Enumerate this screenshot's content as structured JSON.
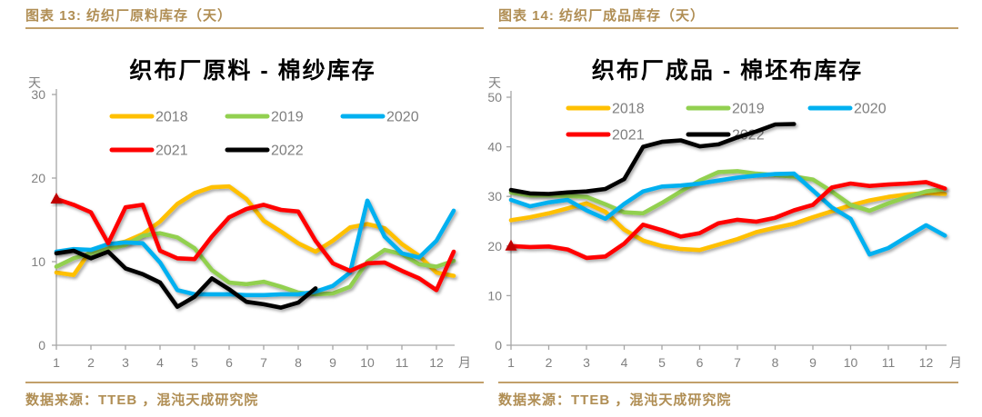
{
  "panels": [
    {
      "header": "图表 13: 纺织厂原料库存（天）",
      "footer": "数据来源：TTEB ，混沌天成研究院"
    },
    {
      "header": "图表 14: 纺织厂成品库存（天）",
      "footer": "数据来源：TTEB ，混沌天成研究院"
    }
  ],
  "colors": {
    "header_gold": "#B08E54",
    "rule_gold": "#C2A06A",
    "axis_gray": "#A6A6A6",
    "tick_label_gray": "#808080",
    "legend_text_gray": "#7F7F7F",
    "title_black": "#000000",
    "marker_red": "#C00000"
  },
  "chart_data": [
    {
      "type": "line",
      "title": "织布厂原料 - 棉纱库存",
      "y_axis_unit": "天",
      "x_axis_unit": "月",
      "ylim": [
        0,
        30
      ],
      "yticks": [
        0,
        10,
        20,
        30
      ],
      "xticks": [
        1,
        2,
        3,
        4,
        5,
        6,
        7,
        8,
        9,
        10,
        11,
        12
      ],
      "grid": false,
      "legend_position": "top-center",
      "legend_rows": [
        [
          "2018",
          "2019",
          "2020"
        ],
        [
          "2021",
          "2022"
        ]
      ],
      "x": [
        1,
        1.5,
        2,
        2.5,
        3,
        3.5,
        4,
        4.5,
        5,
        5.5,
        6,
        6.5,
        7,
        7.5,
        8,
        8.5,
        9,
        9.5,
        10,
        10.5,
        11,
        11.5,
        12,
        12.5
      ],
      "series": [
        {
          "name": "2018",
          "color": "#FFC000",
          "values": [
            8.7,
            8.4,
            11.4,
            12.0,
            12.4,
            13.3,
            14.8,
            16.9,
            18.2,
            18.9,
            19.0,
            17.5,
            14.9,
            13.6,
            12.2,
            11.2,
            12.5,
            14.1,
            14.5,
            14.0,
            12.1,
            10.7,
            8.7,
            8.3
          ]
        },
        {
          "name": "2019",
          "color": "#92D050",
          "values": [
            9.4,
            10.4,
            11.0,
            11.5,
            12.0,
            13.1,
            13.4,
            12.9,
            11.6,
            9.0,
            7.5,
            7.3,
            7.6,
            7.0,
            6.3,
            6.1,
            6.2,
            7.0,
            10.0,
            11.4,
            10.9,
            9.7,
            9.4,
            10.1
          ]
        },
        {
          "name": "2020",
          "color": "#00B0F0",
          "values": [
            11.2,
            11.5,
            11.4,
            12.1,
            12.3,
            12.2,
            9.9,
            6.6,
            6.1,
            6.1,
            6.1,
            6.0,
            6.0,
            6.1,
            6.1,
            6.4,
            7.1,
            8.7,
            17.3,
            13.0,
            11.0,
            10.5,
            12.5,
            16.1
          ]
        },
        {
          "name": "2021",
          "color": "#FF0000",
          "start_marker": {
            "shape": "triangle",
            "x": 1,
            "value": 17.5
          },
          "values": [
            17.5,
            16.8,
            15.9,
            12.2,
            16.5,
            16.8,
            11.3,
            10.4,
            10.3,
            13.0,
            15.3,
            16.3,
            16.8,
            16.2,
            16.0,
            12.5,
            9.8,
            8.9,
            9.8,
            9.9,
            8.9,
            8.0,
            6.6,
            11.2
          ]
        },
        {
          "name": "2022",
          "color": "#000000",
          "values": [
            11.0,
            11.3,
            10.4,
            11.2,
            9.2,
            8.5,
            7.5,
            4.6,
            5.8,
            8.0,
            6.7,
            5.2,
            4.9,
            4.5,
            5.1,
            6.8
          ]
        }
      ]
    },
    {
      "type": "line",
      "title": "织布厂成品 - 棉坯布库存",
      "y_axis_unit": "天",
      "x_axis_unit": "月",
      "ylim": [
        0,
        50
      ],
      "yticks": [
        0,
        10,
        20,
        30,
        40,
        50
      ],
      "xticks": [
        1,
        2,
        3,
        4,
        5,
        6,
        7,
        8,
        9,
        10,
        11,
        12
      ],
      "grid": false,
      "legend_position": "top-center",
      "legend_rows": [
        [
          "2018",
          "2019",
          "2020"
        ],
        [
          "2021",
          "2022"
        ]
      ],
      "x": [
        1,
        1.5,
        2,
        2.5,
        3,
        3.5,
        4,
        4.5,
        5,
        5.5,
        6,
        6.5,
        7,
        7.5,
        8,
        8.5,
        9,
        9.5,
        10,
        10.5,
        11,
        11.5,
        12,
        12.5
      ],
      "series": [
        {
          "name": "2018",
          "color": "#FFC000",
          "values": [
            25.2,
            25.8,
            26.6,
            27.6,
            28.6,
            26.9,
            23.3,
            21.1,
            20.0,
            19.4,
            19.2,
            20.3,
            21.4,
            22.8,
            23.7,
            24.5,
            25.8,
            27.0,
            28.2,
            29.2,
            29.9,
            30.4,
            30.7,
            30.5
          ]
        },
        {
          "name": "2019",
          "color": "#92D050",
          "values": [
            30.8,
            30.2,
            30.2,
            30.1,
            29.9,
            28.4,
            26.8,
            26.6,
            28.7,
            31.0,
            33.2,
            34.9,
            35.1,
            34.6,
            34.3,
            34.0,
            33.4,
            31.0,
            28.3,
            27.1,
            28.6,
            29.9,
            31.0,
            31.5
          ]
        },
        {
          "name": "2020",
          "color": "#00B0F0",
          "values": [
            29.3,
            28.0,
            28.8,
            29.3,
            27.2,
            25.5,
            28.5,
            31.0,
            32.0,
            32.2,
            32.6,
            33.2,
            33.8,
            34.2,
            34.5,
            34.6,
            31.2,
            27.8,
            25.5,
            18.3,
            19.6,
            21.9,
            24.2,
            22.1
          ]
        },
        {
          "name": "2021",
          "color": "#FF0000",
          "start_marker": {
            "shape": "triangle",
            "x": 1,
            "value": 20
          },
          "values": [
            20.0,
            19.8,
            19.9,
            19.3,
            17.6,
            17.9,
            20.5,
            24.3,
            23.2,
            21.9,
            22.6,
            24.6,
            25.3,
            24.9,
            25.7,
            27.2,
            28.3,
            31.8,
            32.6,
            32.1,
            32.4,
            32.6,
            32.9,
            31.6
          ]
        },
        {
          "name": "2022",
          "color": "#000000",
          "values": [
            31.3,
            30.6,
            30.5,
            30.8,
            31.0,
            31.5,
            33.5,
            40.0,
            41.0,
            41.3,
            40.1,
            40.5,
            41.9,
            43.1,
            44.5,
            44.6
          ]
        }
      ]
    }
  ]
}
